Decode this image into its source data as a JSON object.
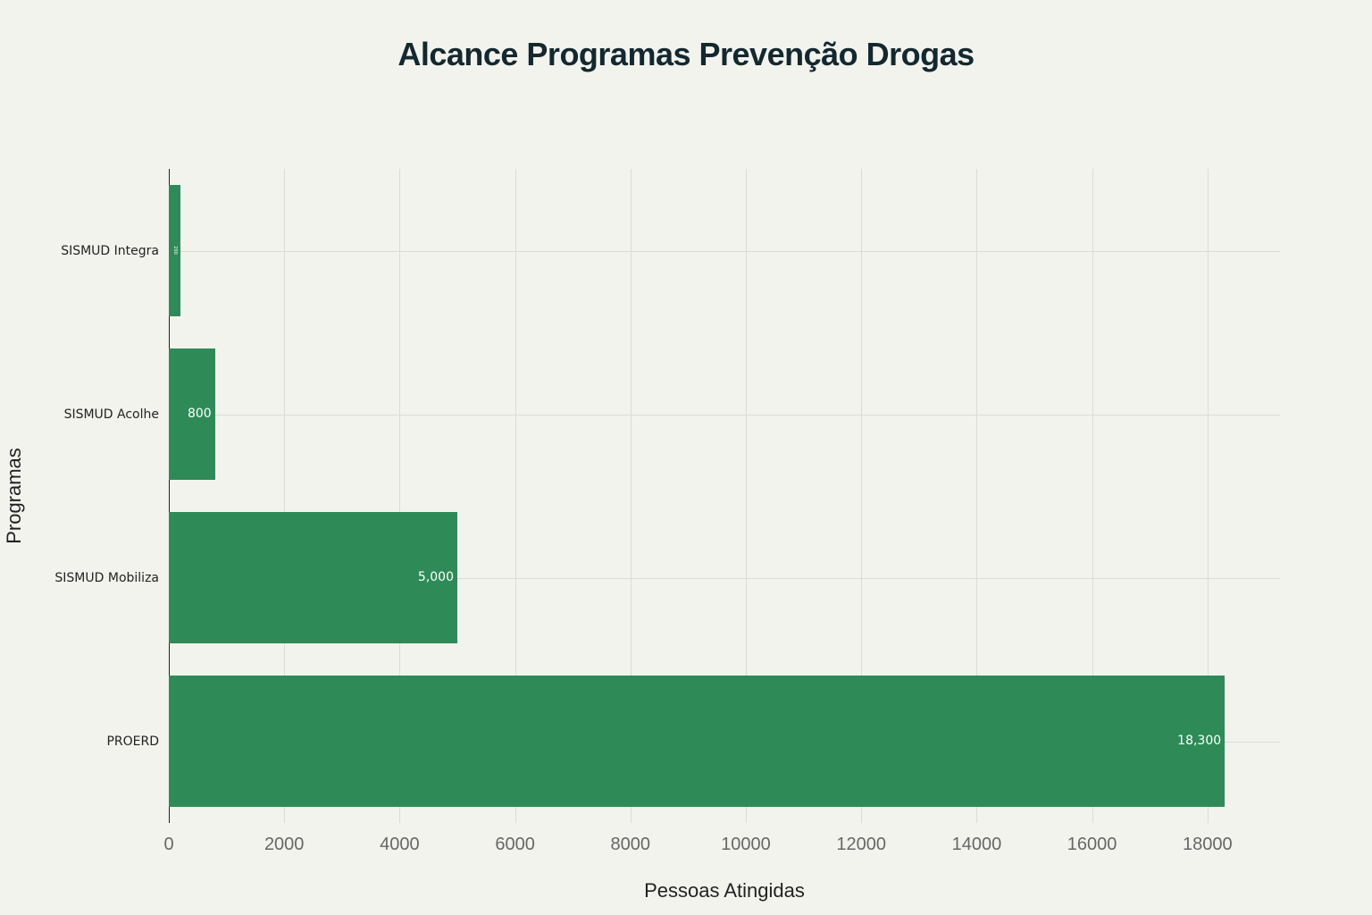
{
  "chart_data": {
    "type": "bar",
    "orientation": "horizontal",
    "title": "Alcance Programas Prevenção Drogas",
    "xlabel": "Pessoas Atingidas",
    "ylabel": "Programas",
    "categories": [
      "SISMUD Integra",
      "SISMUD Acolhe",
      "SISMUD Mobiliza",
      "PROERD"
    ],
    "values": [
      200,
      800,
      5000,
      18300
    ],
    "data_labels": [
      "200",
      "800",
      "5,000",
      "18,300"
    ],
    "xlim": [
      0,
      19250
    ],
    "xticks": [
      "0",
      "2000",
      "4000",
      "6000",
      "8000",
      "10000",
      "12000",
      "14000",
      "16000",
      "18000"
    ],
    "grid": true,
    "legend": "none",
    "bar_color": "#2e8b57"
  }
}
